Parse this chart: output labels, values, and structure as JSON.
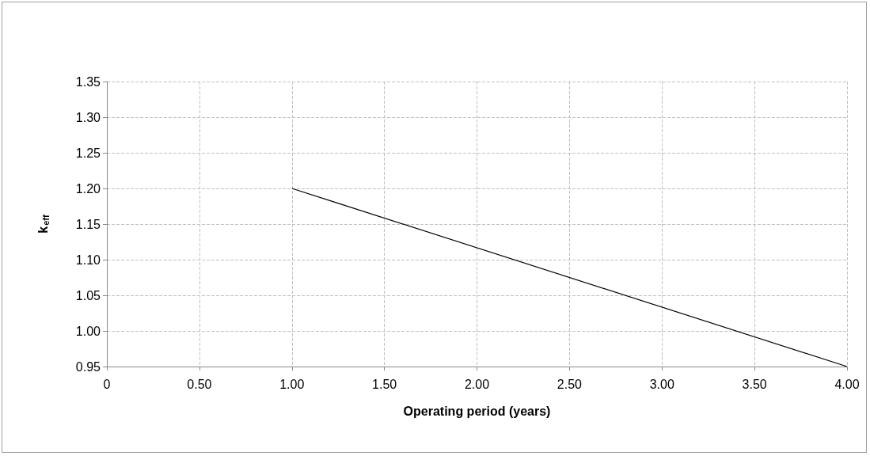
{
  "chart_data": {
    "type": "line",
    "xlabel": "Operating period (years)",
    "ylabel": "k$_{eff}$",
    "x": [
      1.0,
      4.0
    ],
    "series": [
      {
        "color": "#000000",
        "values": [
          1.2,
          0.95
        ]
      }
    ],
    "xlim": [
      0,
      4
    ],
    "ylim": [
      0.95,
      1.35
    ],
    "xticks": [
      0,
      {
        "value": 0.5,
        "label": "0.50"
      },
      {
        "value": 1,
        "label": "1.00"
      },
      {
        "value": 1.5,
        "label": "1.50"
      },
      {
        "value": 2,
        "label": "2.00"
      },
      {
        "value": 2.5,
        "label": "2.50"
      },
      {
        "value": 3,
        "label": "3.00"
      },
      {
        "value": 3.5,
        "label": "3.50"
      },
      {
        "value": 4,
        "label": "4.00"
      }
    ],
    "yticks": [
      0.95,
      {
        "value": 1,
        "label": "1.00"
      },
      1.05,
      {
        "value": 1.1,
        "label": "1.10"
      },
      1.15,
      {
        "value": 1.2,
        "label": "1.20"
      },
      1.25,
      {
        "value": 1.3,
        "label": "1.30"
      },
      1.35
    ],
    "grid": true,
    "marker": "none",
    "line_style": "solid"
  }
}
